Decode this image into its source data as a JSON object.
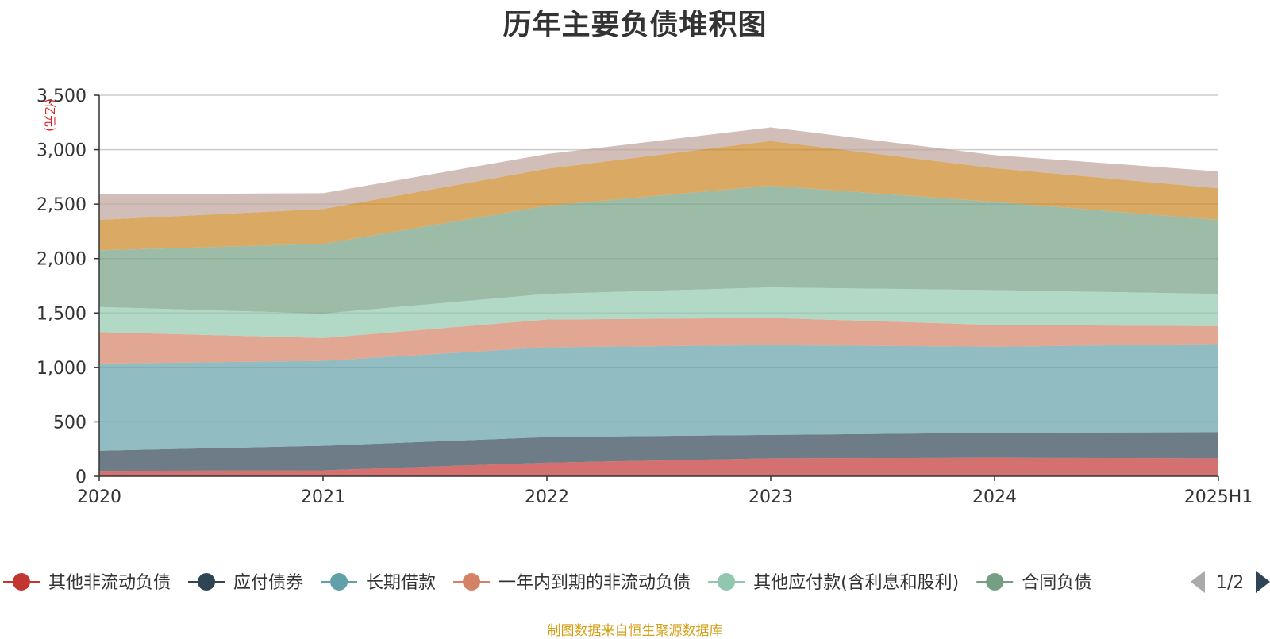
{
  "chart_data": {
    "type": "area",
    "stacked": true,
    "title": "历年主要负债堆积图",
    "ylabel": "(亿元)",
    "ylim": [
      0,
      3500
    ],
    "yticks": [
      0,
      500,
      1000,
      1500,
      2000,
      2500,
      3000,
      3500
    ],
    "ytick_labels": [
      "0",
      "500",
      "1,000",
      "1,500",
      "2,000",
      "2,500",
      "3,000",
      "3,500"
    ],
    "categories": [
      "2020",
      "2021",
      "2022",
      "2023",
      "2024",
      "2025H1"
    ],
    "grid": true,
    "legend_position": "bottom",
    "series": [
      {
        "name": "其他非流动负债",
        "color": "#c23531",
        "legend_color": "#c23531",
        "values": [
          50,
          55,
          125,
          165,
          170,
          165
        ]
      },
      {
        "name": "应付债券",
        "color": "#2f4554",
        "legend_color": "#2f4554",
        "values": [
          185,
          225,
          235,
          215,
          230,
          240
        ]
      },
      {
        "name": "长期借款",
        "color": "#61a0a8",
        "legend_color": "#61a0a8",
        "values": [
          800,
          780,
          825,
          825,
          790,
          810
        ]
      },
      {
        "name": "一年内到期的非流动负债",
        "color": "#d48265",
        "legend_color": "#d48265",
        "values": [
          290,
          210,
          255,
          250,
          200,
          165
        ]
      },
      {
        "name": "其他应付款(含利息和股利)",
        "color": "#91c7ae",
        "legend_color": "#91c7ae",
        "values": [
          230,
          225,
          235,
          280,
          320,
          295
        ]
      },
      {
        "name": "合同负债",
        "color": "#749f83",
        "legend_color": "#749f83",
        "values": [
          520,
          640,
          810,
          935,
          810,
          680
        ]
      },
      {
        "name": "",
        "color": "#ca8622",
        "values": [
          280,
          320,
          340,
          410,
          310,
          290
        ]
      },
      {
        "name": "",
        "color": "#bda29a",
        "values": [
          235,
          145,
          135,
          125,
          120,
          155
        ]
      }
    ]
  },
  "legend": {
    "page_indicator": "1/2",
    "prev_icon": "triangle-left-icon",
    "next_icon": "triangle-right-icon"
  },
  "footer": {
    "source": "制图数据来自恒生聚源数据库"
  }
}
